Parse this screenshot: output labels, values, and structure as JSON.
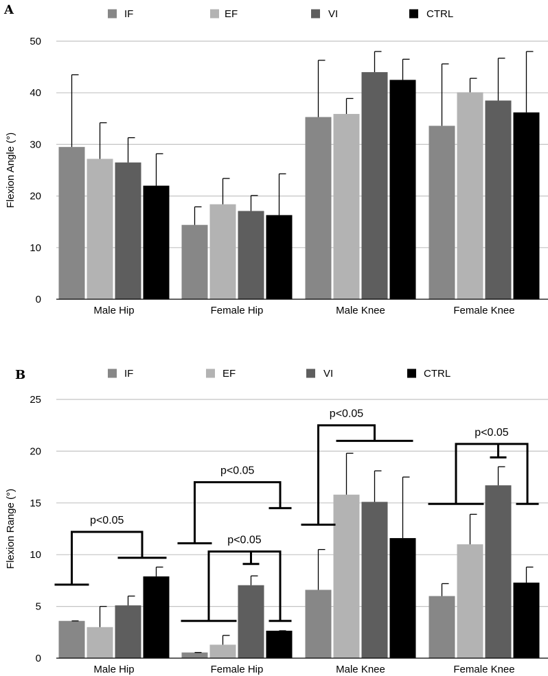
{
  "chart_data": [
    {
      "panel": "A",
      "type": "bar",
      "ylabel": "Flexion Angle (°)",
      "xlabel": "",
      "ylim": [
        0,
        50
      ],
      "yticks": [
        0,
        10,
        20,
        30,
        40,
        50
      ],
      "grid": true,
      "legend_position": "top",
      "categories": [
        "Male Hip",
        "Female Hip",
        "Male Knee",
        "Female Knee"
      ],
      "series": [
        {
          "name": "IF",
          "color": "#878787",
          "values": [
            29.5,
            14.4,
            35.3,
            33.6
          ],
          "errors": [
            14.0,
            3.5,
            11.0,
            12.0
          ]
        },
        {
          "name": "EF",
          "color": "#b3b3b3",
          "values": [
            27.2,
            18.4,
            35.9,
            40.1
          ],
          "errors": [
            7.0,
            5.0,
            3.0,
            2.7
          ]
        },
        {
          "name": "VI",
          "color": "#5e5e5e",
          "values": [
            26.5,
            17.1,
            44.0,
            38.5
          ],
          "errors": [
            4.8,
            3.0,
            4.0,
            8.2
          ]
        },
        {
          "name": "CTRL",
          "color": "#000000",
          "values": [
            22.0,
            16.3,
            42.5,
            36.2
          ],
          "errors": [
            6.2,
            8.0,
            4.0,
            11.8
          ]
        }
      ],
      "annotations": []
    },
    {
      "panel": "B",
      "type": "bar",
      "ylabel": "Flexion Range (°)",
      "xlabel": "",
      "ylim": [
        0,
        25
      ],
      "yticks": [
        0,
        5,
        10,
        15,
        20,
        25
      ],
      "grid": true,
      "legend_position": "top",
      "categories": [
        "Male Hip",
        "Female Hip",
        "Male Knee",
        "Female Knee"
      ],
      "series": [
        {
          "name": "IF",
          "color": "#878787",
          "values": [
            3.6,
            0.55,
            6.6,
            6.0
          ],
          "errors": [
            0.0,
            0.0,
            3.9,
            1.2
          ]
        },
        {
          "name": "EF",
          "color": "#b3b3b3",
          "values": [
            3.0,
            1.3,
            15.8,
            11.0
          ],
          "errors": [
            2.0,
            0.9,
            4.0,
            2.9
          ]
        },
        {
          "name": "VI",
          "color": "#5e5e5e",
          "values": [
            5.1,
            7.05,
            15.1,
            16.7
          ],
          "errors": [
            0.9,
            0.9,
            3.0,
            1.8
          ]
        },
        {
          "name": "CTRL",
          "color": "#000000",
          "values": [
            7.9,
            2.65,
            11.6,
            7.3
          ],
          "errors": [
            0.9,
            0.0,
            5.9,
            1.5
          ]
        }
      ],
      "annotations": [
        {
          "text": "p<0.05",
          "category": "Male Hip",
          "left_bar": 0,
          "right_bar": 3,
          "right_spans": [
            2,
            3
          ],
          "left_y": 7.1,
          "right_y": 9.7,
          "top_y": 12.2
        },
        {
          "text": "p<0.05",
          "category": "Female Hip",
          "left_bar": 0,
          "right_bar": 3,
          "left_y": 11.1,
          "right_y": 14.5,
          "top_y": 17.0
        },
        {
          "text": "p<0.05",
          "category": "Female Hip",
          "left_bar": 0,
          "right_bar": 3,
          "left_spans": [
            0,
            1
          ],
          "mid_bar": 2,
          "left_y": 3.6,
          "right_y": 3.6,
          "mid_y": 9.1,
          "top_y": 10.3
        },
        {
          "text": "p<0.05",
          "category": "Male Knee",
          "left_bar": 0,
          "right_bar": 3,
          "right_spans": [
            1,
            3
          ],
          "left_y": 12.9,
          "right_y": 21.0,
          "top_y": 22.5
        },
        {
          "text": "p<0.05",
          "category": "Female Knee",
          "left_bar": 0,
          "right_bar": 3,
          "left_spans": [
            0,
            1
          ],
          "mid_bar": 2,
          "left_y": 14.9,
          "right_y": 14.9,
          "mid_y": 19.4,
          "top_y": 20.7
        }
      ]
    }
  ]
}
